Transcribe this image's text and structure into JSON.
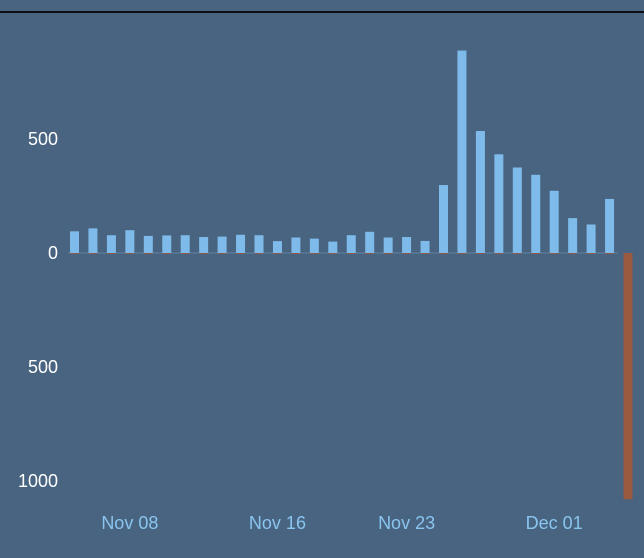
{
  "colors": {
    "background": "#486480",
    "positive": "#7fbbea",
    "negative": "#9a5a40",
    "y_tick_text": "#ffffff",
    "x_tick_text": "#8ac5ef",
    "zero_line": "#5b84a3"
  },
  "chart_data": {
    "type": "bar",
    "title": "",
    "xlabel": "",
    "ylabel": "",
    "x_tick_labels": [
      "Nov 08",
      "Nov 16",
      "Nov 23",
      "Dec 01"
    ],
    "x_tick_dates": [
      "2020-11-08",
      "2020-11-16",
      "2020-11-23",
      "2020-12-01"
    ],
    "y_tick_labels": [
      "500",
      "0",
      "500",
      "1000"
    ],
    "y_tick_values": [
      500,
      0,
      -500,
      -1000
    ],
    "ylim": [
      -1080,
      890
    ],
    "grid": false,
    "legend": "none",
    "dates": [
      "2020-11-05",
      "2020-11-06",
      "2020-11-07",
      "2020-11-08",
      "2020-11-09",
      "2020-11-10",
      "2020-11-11",
      "2020-11-12",
      "2020-11-13",
      "2020-11-14",
      "2020-11-15",
      "2020-11-16",
      "2020-11-17",
      "2020-11-18",
      "2020-11-19",
      "2020-11-20",
      "2020-11-21",
      "2020-11-22",
      "2020-11-23",
      "2020-11-24",
      "2020-11-25",
      "2020-11-26",
      "2020-11-27",
      "2020-11-28",
      "2020-11-29",
      "2020-11-30",
      "2020-12-01",
      "2020-12-02",
      "2020-12-03",
      "2020-12-04",
      "2020-12-05"
    ],
    "series": [
      {
        "values": [
          95,
          108,
          78,
          100,
          75,
          77,
          78,
          70,
          72,
          80,
          78,
          52,
          68,
          63,
          50,
          78,
          93,
          68,
          70,
          53,
          298,
          888,
          535,
          433,
          375,
          343,
          273,
          153,
          125,
          237,
          0
        ]
      },
      {
        "values": [
          -4,
          -4,
          -4,
          -4,
          -4,
          -4,
          -4,
          -4,
          -4,
          -4,
          -4,
          -4,
          -4,
          -4,
          -4,
          -4,
          -4,
          -4,
          -4,
          -4,
          -4,
          -4,
          -4,
          -4,
          -4,
          -4,
          -4,
          -4,
          -4,
          -4,
          -1080
        ]
      }
    ]
  }
}
